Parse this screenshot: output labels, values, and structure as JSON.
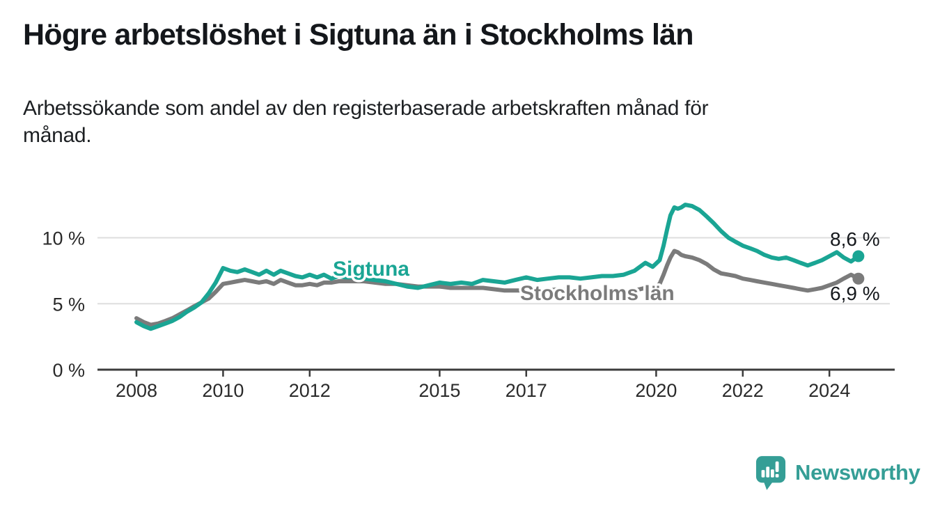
{
  "header": {
    "title": "Högre arbetslöshet i Sigtuna än i Stockholms län",
    "subtitle_lines": [
      "Arbetssökande som andel av den registerbaserade arbetskraften månad för",
      "månad."
    ]
  },
  "chart_data": {
    "type": "line",
    "title": "Högre arbetslöshet i Sigtuna än i Stockholms län",
    "subtitle": "Arbetssökande som andel av den registerbaserade arbetskraften månad för månad.",
    "unit": "%",
    "grid": "horizontal",
    "legend_position": "inline-labels",
    "x_range": [
      2008,
      2024.75
    ],
    "y_range": [
      0,
      13.5
    ],
    "x_ticks": [
      2008,
      2010,
      2012,
      2015,
      2017,
      2020,
      2022,
      2024
    ],
    "y_ticks": [
      {
        "value": 0,
        "label": "0 %"
      },
      {
        "value": 5,
        "label": "5 %"
      },
      {
        "value": 10,
        "label": "10 %"
      }
    ],
    "series": [
      {
        "name": "Sigtuna",
        "color": "#1AA594",
        "end_label": "8,6 %",
        "end_value": 8.6,
        "points": [
          [
            2008.0,
            3.6
          ],
          [
            2008.17,
            3.3
          ],
          [
            2008.33,
            3.1
          ],
          [
            2008.5,
            3.3
          ],
          [
            2008.67,
            3.5
          ],
          [
            2008.83,
            3.7
          ],
          [
            2009.0,
            4.0
          ],
          [
            2009.17,
            4.4
          ],
          [
            2009.33,
            4.7
          ],
          [
            2009.5,
            5.1
          ],
          [
            2009.67,
            5.8
          ],
          [
            2009.83,
            6.6
          ],
          [
            2010.0,
            7.7
          ],
          [
            2010.17,
            7.5
          ],
          [
            2010.33,
            7.4
          ],
          [
            2010.5,
            7.6
          ],
          [
            2010.67,
            7.4
          ],
          [
            2010.83,
            7.2
          ],
          [
            2011.0,
            7.5
          ],
          [
            2011.17,
            7.2
          ],
          [
            2011.33,
            7.5
          ],
          [
            2011.5,
            7.3
          ],
          [
            2011.67,
            7.1
          ],
          [
            2011.83,
            7.0
          ],
          [
            2012.0,
            7.2
          ],
          [
            2012.17,
            7.0
          ],
          [
            2012.33,
            7.2
          ],
          [
            2012.5,
            6.9
          ],
          [
            2012.67,
            7.1
          ],
          [
            2012.83,
            7.0
          ],
          [
            2013.0,
            7.0
          ],
          [
            2013.25,
            6.9
          ],
          [
            2013.5,
            6.8
          ],
          [
            2013.75,
            6.7
          ],
          [
            2014.0,
            6.5
          ],
          [
            2014.25,
            6.3
          ],
          [
            2014.5,
            6.2
          ],
          [
            2014.75,
            6.4
          ],
          [
            2015.0,
            6.6
          ],
          [
            2015.25,
            6.5
          ],
          [
            2015.5,
            6.6
          ],
          [
            2015.75,
            6.5
          ],
          [
            2016.0,
            6.8
          ],
          [
            2016.25,
            6.7
          ],
          [
            2016.5,
            6.6
          ],
          [
            2016.75,
            6.8
          ],
          [
            2017.0,
            7.0
          ],
          [
            2017.25,
            6.8
          ],
          [
            2017.5,
            6.9
          ],
          [
            2017.75,
            7.0
          ],
          [
            2018.0,
            7.0
          ],
          [
            2018.25,
            6.9
          ],
          [
            2018.5,
            7.0
          ],
          [
            2018.75,
            7.1
          ],
          [
            2019.0,
            7.1
          ],
          [
            2019.25,
            7.2
          ],
          [
            2019.5,
            7.5
          ],
          [
            2019.75,
            8.1
          ],
          [
            2019.92,
            7.8
          ],
          [
            2020.08,
            8.3
          ],
          [
            2020.17,
            9.4
          ],
          [
            2020.25,
            10.6
          ],
          [
            2020.33,
            11.7
          ],
          [
            2020.42,
            12.3
          ],
          [
            2020.5,
            12.2
          ],
          [
            2020.58,
            12.3
          ],
          [
            2020.67,
            12.5
          ],
          [
            2020.83,
            12.4
          ],
          [
            2021.0,
            12.1
          ],
          [
            2021.17,
            11.6
          ],
          [
            2021.33,
            11.1
          ],
          [
            2021.5,
            10.5
          ],
          [
            2021.67,
            10.0
          ],
          [
            2021.83,
            9.7
          ],
          [
            2022.0,
            9.4
          ],
          [
            2022.17,
            9.2
          ],
          [
            2022.33,
            9.0
          ],
          [
            2022.5,
            8.7
          ],
          [
            2022.67,
            8.5
          ],
          [
            2022.83,
            8.4
          ],
          [
            2023.0,
            8.5
          ],
          [
            2023.17,
            8.3
          ],
          [
            2023.33,
            8.1
          ],
          [
            2023.5,
            7.9
          ],
          [
            2023.67,
            8.1
          ],
          [
            2023.83,
            8.3
          ],
          [
            2024.0,
            8.6
          ],
          [
            2024.17,
            8.9
          ],
          [
            2024.33,
            8.5
          ],
          [
            2024.5,
            8.2
          ],
          [
            2024.67,
            8.6
          ]
        ]
      },
      {
        "name": "Stockholms län",
        "color": "#7B7B7B",
        "end_label": "6,9 %",
        "end_value": 6.9,
        "points": [
          [
            2008.0,
            3.9
          ],
          [
            2008.17,
            3.6
          ],
          [
            2008.33,
            3.4
          ],
          [
            2008.5,
            3.5
          ],
          [
            2008.67,
            3.7
          ],
          [
            2008.83,
            3.9
          ],
          [
            2009.0,
            4.2
          ],
          [
            2009.17,
            4.5
          ],
          [
            2009.33,
            4.8
          ],
          [
            2009.5,
            5.1
          ],
          [
            2009.67,
            5.4
          ],
          [
            2009.83,
            5.9
          ],
          [
            2010.0,
            6.5
          ],
          [
            2010.17,
            6.6
          ],
          [
            2010.33,
            6.7
          ],
          [
            2010.5,
            6.8
          ],
          [
            2010.67,
            6.7
          ],
          [
            2010.83,
            6.6
          ],
          [
            2011.0,
            6.7
          ],
          [
            2011.17,
            6.5
          ],
          [
            2011.33,
            6.8
          ],
          [
            2011.5,
            6.6
          ],
          [
            2011.67,
            6.4
          ],
          [
            2011.83,
            6.4
          ],
          [
            2012.0,
            6.5
          ],
          [
            2012.17,
            6.4
          ],
          [
            2012.33,
            6.6
          ],
          [
            2012.5,
            6.6
          ],
          [
            2012.67,
            6.7
          ],
          [
            2012.83,
            6.7
          ],
          [
            2013.0,
            6.7
          ],
          [
            2013.25,
            6.7
          ],
          [
            2013.5,
            6.6
          ],
          [
            2013.75,
            6.5
          ],
          [
            2014.0,
            6.5
          ],
          [
            2014.25,
            6.4
          ],
          [
            2014.5,
            6.3
          ],
          [
            2014.75,
            6.3
          ],
          [
            2015.0,
            6.3
          ],
          [
            2015.25,
            6.2
          ],
          [
            2015.5,
            6.2
          ],
          [
            2015.75,
            6.2
          ],
          [
            2016.0,
            6.2
          ],
          [
            2016.25,
            6.1
          ],
          [
            2016.5,
            6.0
          ],
          [
            2016.75,
            6.0
          ],
          [
            2017.0,
            6.0
          ],
          [
            2017.25,
            6.0
          ],
          [
            2017.5,
            6.0
          ],
          [
            2017.75,
            6.1
          ],
          [
            2018.0,
            6.0
          ],
          [
            2018.25,
            5.9
          ],
          [
            2018.5,
            5.9
          ],
          [
            2018.75,
            5.9
          ],
          [
            2019.0,
            5.9
          ],
          [
            2019.25,
            5.9
          ],
          [
            2019.5,
            6.0
          ],
          [
            2019.75,
            6.2
          ],
          [
            2019.92,
            6.1
          ],
          [
            2020.08,
            6.5
          ],
          [
            2020.17,
            7.2
          ],
          [
            2020.25,
            7.9
          ],
          [
            2020.33,
            8.5
          ],
          [
            2020.42,
            9.0
          ],
          [
            2020.5,
            8.9
          ],
          [
            2020.58,
            8.7
          ],
          [
            2020.67,
            8.6
          ],
          [
            2020.83,
            8.5
          ],
          [
            2021.0,
            8.3
          ],
          [
            2021.17,
            8.0
          ],
          [
            2021.33,
            7.6
          ],
          [
            2021.5,
            7.3
          ],
          [
            2021.67,
            7.2
          ],
          [
            2021.83,
            7.1
          ],
          [
            2022.0,
            6.9
          ],
          [
            2022.17,
            6.8
          ],
          [
            2022.33,
            6.7
          ],
          [
            2022.5,
            6.6
          ],
          [
            2022.67,
            6.5
          ],
          [
            2022.83,
            6.4
          ],
          [
            2023.0,
            6.3
          ],
          [
            2023.17,
            6.2
          ],
          [
            2023.33,
            6.1
          ],
          [
            2023.5,
            6.0
          ],
          [
            2023.67,
            6.1
          ],
          [
            2023.83,
            6.2
          ],
          [
            2024.0,
            6.4
          ],
          [
            2024.17,
            6.6
          ],
          [
            2024.33,
            6.9
          ],
          [
            2024.5,
            7.2
          ],
          [
            2024.67,
            6.9
          ]
        ]
      }
    ]
  },
  "branding": {
    "logo_text": "Newsworthy",
    "logo_color": "#359e96"
  },
  "colors": {
    "sigtuna": "#1AA594",
    "stockholm": "#7B7B7B",
    "gridline": "#dedede",
    "axis": "#3c3c3c",
    "text": "#14171b"
  }
}
